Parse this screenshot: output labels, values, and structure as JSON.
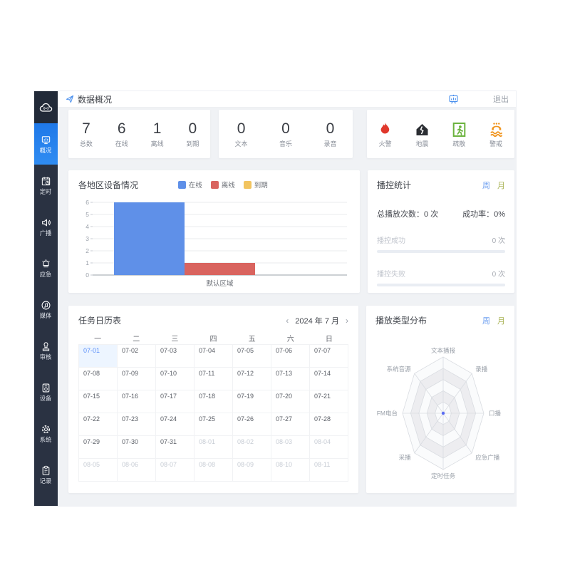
{
  "app": {
    "title": "数据概况",
    "logout": "退出"
  },
  "sidebar": {
    "items": [
      {
        "id": "overview",
        "label": "概况",
        "active": true
      },
      {
        "id": "timing",
        "label": "定时",
        "active": false
      },
      {
        "id": "broadcast",
        "label": "广播",
        "active": false
      },
      {
        "id": "emergency",
        "label": "应急",
        "active": false
      },
      {
        "id": "media",
        "label": "媒体",
        "active": false
      },
      {
        "id": "audit",
        "label": "审核",
        "active": false
      },
      {
        "id": "device",
        "label": "设备",
        "active": false
      },
      {
        "id": "system",
        "label": "系统",
        "active": false
      },
      {
        "id": "record",
        "label": "记录",
        "active": false
      }
    ]
  },
  "stats": {
    "devices": [
      {
        "label": "总数",
        "value": "7"
      },
      {
        "label": "在线",
        "value": "6"
      },
      {
        "label": "离线",
        "value": "1"
      },
      {
        "label": "到期",
        "value": "0"
      }
    ],
    "media": [
      {
        "label": "文本",
        "value": "0"
      },
      {
        "label": "音乐",
        "value": "0"
      },
      {
        "label": "录音",
        "value": "0"
      }
    ],
    "alerts": [
      {
        "label": "火警",
        "icon": "fire-icon",
        "color": "#e0382c"
      },
      {
        "label": "地震",
        "icon": "earthquake-icon",
        "color": "#2b2e33"
      },
      {
        "label": "疏散",
        "icon": "evacuation-icon",
        "color": "#6cb33f"
      },
      {
        "label": "警戒",
        "icon": "flood-icon",
        "color": "#f0941d"
      }
    ]
  },
  "chart_data": [
    {
      "type": "bar",
      "title": "各地区设备情况",
      "categories": [
        "默认区域"
      ],
      "series": [
        {
          "name": "在线",
          "color": "#5f90e8",
          "values": [
            6
          ]
        },
        {
          "name": "离线",
          "color": "#d9645f",
          "values": [
            1
          ]
        },
        {
          "name": "到期",
          "color": "#f2c45f",
          "values": [
            0
          ]
        }
      ],
      "ylim": [
        0,
        6
      ],
      "yticks": [
        0,
        1,
        2,
        3,
        4,
        5,
        6
      ],
      "grid": true,
      "legend_position": "top"
    },
    {
      "type": "radar",
      "title": "播放类型分布",
      "axes": [
        "文本播报",
        "录播",
        "口播",
        "应急广播",
        "定时任务",
        "采播",
        "FM电台",
        "系统音源"
      ],
      "values": [
        0,
        0,
        0,
        0,
        0,
        0,
        0,
        0
      ],
      "rings": 5,
      "point_color": "#5a6cf3"
    }
  ],
  "playback": {
    "title": "播控统计",
    "tabs": [
      "周",
      "月"
    ],
    "total_label": "总播放次数：",
    "total_value": "0 次",
    "success_label": "成功率：",
    "success_value": "0%",
    "metrics": [
      {
        "label": "播控成功",
        "value": "0 次",
        "progress": 0
      },
      {
        "label": "播控失败",
        "value": "0 次",
        "progress": 0
      }
    ]
  },
  "calendar": {
    "title": "任务日历表",
    "nav": {
      "prev": "‹",
      "label": "2024 年 7 月",
      "next": "›"
    },
    "weekdays": [
      "一",
      "二",
      "三",
      "四",
      "五",
      "六",
      "日"
    ],
    "days": [
      {
        "d": "07-01",
        "s": "today"
      },
      {
        "d": "07-02",
        "s": "cur"
      },
      {
        "d": "07-03",
        "s": "cur"
      },
      {
        "d": "07-04",
        "s": "cur"
      },
      {
        "d": "07-05",
        "s": "cur"
      },
      {
        "d": "07-06",
        "s": "cur"
      },
      {
        "d": "07-07",
        "s": "cur"
      },
      {
        "d": "07-08",
        "s": "cur"
      },
      {
        "d": "07-09",
        "s": "cur"
      },
      {
        "d": "07-10",
        "s": "cur"
      },
      {
        "d": "07-11",
        "s": "cur"
      },
      {
        "d": "07-12",
        "s": "cur"
      },
      {
        "d": "07-13",
        "s": "cur"
      },
      {
        "d": "07-14",
        "s": "cur"
      },
      {
        "d": "07-15",
        "s": "cur"
      },
      {
        "d": "07-16",
        "s": "cur"
      },
      {
        "d": "07-17",
        "s": "cur"
      },
      {
        "d": "07-18",
        "s": "cur"
      },
      {
        "d": "07-19",
        "s": "cur"
      },
      {
        "d": "07-20",
        "s": "cur"
      },
      {
        "d": "07-21",
        "s": "cur"
      },
      {
        "d": "07-22",
        "s": "cur"
      },
      {
        "d": "07-23",
        "s": "cur"
      },
      {
        "d": "07-24",
        "s": "cur"
      },
      {
        "d": "07-25",
        "s": "cur"
      },
      {
        "d": "07-26",
        "s": "cur"
      },
      {
        "d": "07-27",
        "s": "cur"
      },
      {
        "d": "07-28",
        "s": "cur"
      },
      {
        "d": "07-29",
        "s": "cur"
      },
      {
        "d": "07-30",
        "s": "cur"
      },
      {
        "d": "07-31",
        "s": "cur"
      },
      {
        "d": "08-01",
        "s": "other"
      },
      {
        "d": "08-02",
        "s": "other"
      },
      {
        "d": "08-03",
        "s": "other"
      },
      {
        "d": "08-04",
        "s": "other"
      },
      {
        "d": "08-05",
        "s": "other"
      },
      {
        "d": "08-06",
        "s": "other"
      },
      {
        "d": "08-07",
        "s": "other"
      },
      {
        "d": "08-08",
        "s": "other"
      },
      {
        "d": "08-09",
        "s": "other"
      },
      {
        "d": "08-10",
        "s": "other"
      },
      {
        "d": "08-11",
        "s": "other"
      }
    ]
  },
  "radar_panel": {
    "title": "播放类型分布",
    "tabs": [
      "周",
      "月"
    ]
  },
  "colors": {
    "accent": "#2082ea",
    "sidebar": "#2a3242",
    "bg": "#f0f2f5",
    "tab_week": "#6d9ff0",
    "tab_month": "#aab457"
  }
}
